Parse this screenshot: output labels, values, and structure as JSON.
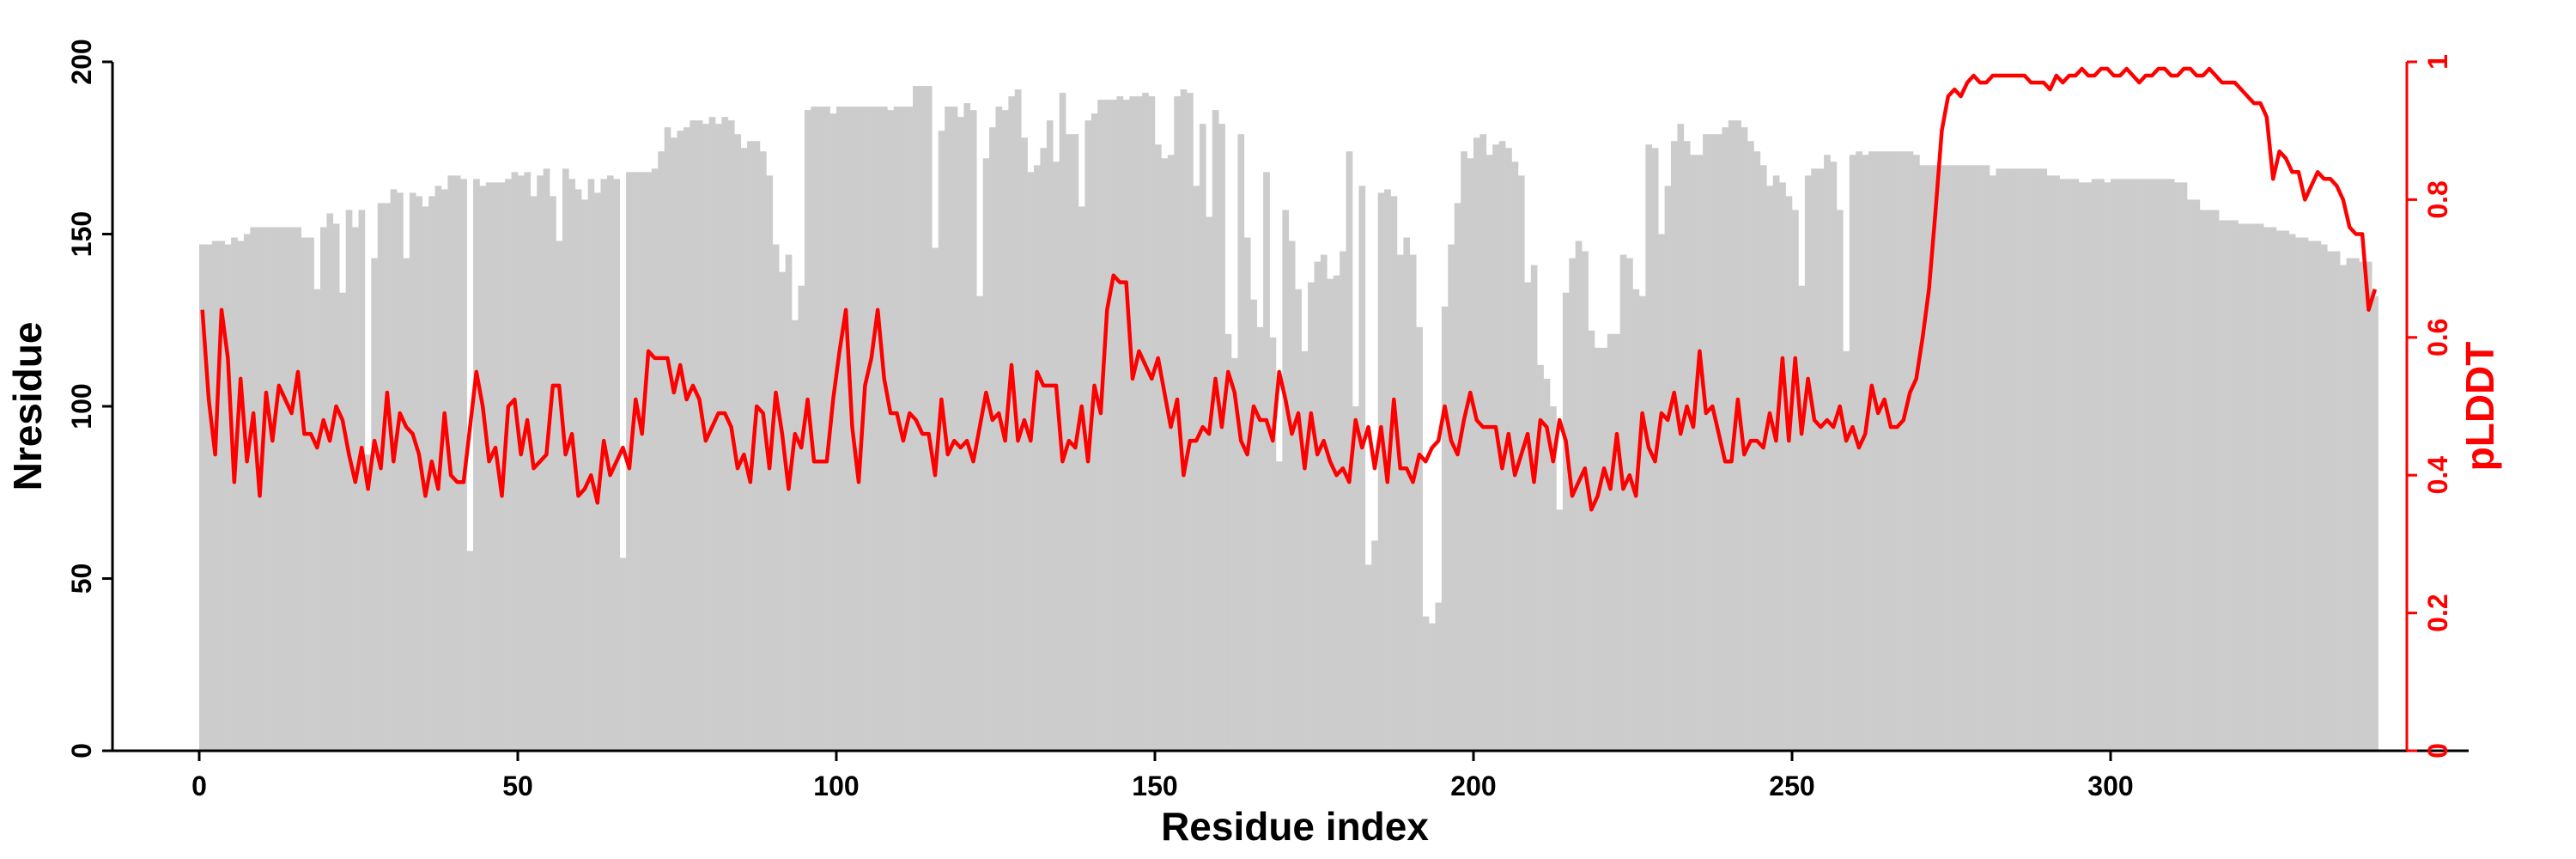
{
  "chart_data": {
    "type": "bar+line",
    "xlabel": "Residue index",
    "ylabel": "Nresidue",
    "y2label": "pLDDT",
    "xlim": [
      -13.6,
      356
    ],
    "ylim": [
      0,
      200
    ],
    "y2lim": [
      0,
      1
    ],
    "x_ticks": [
      "0",
      "50",
      "100",
      "150",
      "200",
      "250",
      "300"
    ],
    "x_tick_values": [
      0,
      50,
      100,
      150,
      200,
      250,
      300
    ],
    "y_ticks": [
      "0",
      "50",
      "100",
      "150",
      "200"
    ],
    "y_tick_values": [
      0,
      50,
      100,
      150,
      200
    ],
    "y2_ticks": [
      "0",
      "0.2",
      "0.4",
      "0.6",
      "0.8",
      "1"
    ],
    "y2_tick_values": [
      0,
      0.2,
      0.4,
      0.6,
      0.8,
      1
    ],
    "grid": false,
    "colors": {
      "bars": "#cccccc",
      "line": "#ff0000",
      "axis": "#000000",
      "axis2": "#ff0000"
    },
    "series": [
      {
        "name": "Nresidue",
        "type": "bar",
        "axis": "left",
        "values": [
          147,
          147,
          148,
          148,
          147,
          149,
          148,
          150,
          152,
          152,
          152,
          152,
          152,
          152,
          152,
          152,
          149,
          149,
          134,
          152,
          156,
          153,
          133,
          157,
          152,
          157,
          86,
          143,
          159,
          159,
          163,
          162,
          143,
          162,
          161,
          158,
          161,
          164,
          163,
          167,
          167,
          166,
          58,
          166,
          164,
          165,
          165,
          165,
          166,
          168,
          167,
          168,
          161,
          167,
          169,
          161,
          148,
          169,
          166,
          163,
          160,
          166,
          162,
          166,
          167,
          166,
          56,
          168,
          168,
          168,
          168,
          169,
          174,
          181,
          178,
          180,
          181,
          183,
          183,
          182,
          184,
          182,
          184,
          183,
          179,
          175,
          177,
          177,
          174,
          167,
          147,
          139,
          144,
          125,
          135,
          186,
          187,
          187,
          187,
          185,
          187,
          187,
          187,
          187,
          187,
          187,
          187,
          187,
          186,
          187,
          187,
          187,
          193,
          193,
          193,
          146,
          180,
          187,
          187,
          184,
          188,
          186,
          132,
          172,
          181,
          187,
          186,
          190,
          192,
          178,
          168,
          170,
          175,
          183,
          171,
          191,
          179,
          179,
          158,
          183,
          185,
          189,
          189,
          189,
          190,
          189,
          190,
          190,
          191,
          190,
          176,
          172,
          173,
          190,
          192,
          191,
          164,
          182,
          155,
          186,
          182,
          121,
          114,
          179,
          149,
          131,
          123,
          168,
          120,
          84,
          157,
          148,
          134,
          116,
          136,
          142,
          144,
          137,
          138,
          145,
          174,
          100,
          164,
          54,
          61,
          162,
          163,
          161,
          144,
          149,
          144,
          123,
          39,
          37,
          43,
          129,
          147,
          159,
          174,
          172,
          178,
          179,
          173,
          176,
          177,
          175,
          171,
          167,
          136,
          141,
          112,
          108,
          100,
          70,
          133,
          143,
          148,
          145,
          122,
          117,
          117,
          121,
          121,
          144,
          143,
          134,
          132,
          176,
          175,
          150,
          164,
          177,
          182,
          177,
          173,
          173,
          179,
          179,
          179,
          181,
          183,
          183,
          181,
          177,
          174,
          170,
          164,
          167,
          165,
          161,
          157,
          135,
          167,
          169,
          169,
          173,
          171,
          157,
          116,
          173,
          174,
          173,
          174,
          174,
          174,
          174,
          174,
          174,
          174,
          173,
          170,
          170,
          170,
          170,
          170,
          170,
          170,
          170,
          170,
          170,
          170,
          167,
          169,
          169,
          169,
          169,
          169,
          169,
          169,
          169,
          167,
          167,
          166,
          166,
          166,
          165,
          165,
          166,
          166,
          165,
          166,
          166,
          166,
          166,
          166,
          166,
          166,
          166,
          166,
          166,
          165,
          165,
          160,
          160,
          157,
          157,
          157,
          154,
          154,
          154,
          153,
          153,
          153,
          153,
          152,
          152,
          151,
          151,
          150,
          149,
          149,
          148,
          148,
          147,
          145,
          145,
          141,
          143,
          143,
          142,
          142,
          132
        ]
      },
      {
        "name": "pLDDT",
        "type": "line",
        "axis": "right",
        "values": [
          0.64,
          0.51,
          0.43,
          0.64,
          0.57,
          0.39,
          0.54,
          0.42,
          0.49,
          0.37,
          0.52,
          0.45,
          0.53,
          0.51,
          0.49,
          0.55,
          0.46,
          0.46,
          0.44,
          0.48,
          0.45,
          0.5,
          0.48,
          0.43,
          0.39,
          0.44,
          0.38,
          0.45,
          0.41,
          0.52,
          0.42,
          0.49,
          0.47,
          0.46,
          0.43,
          0.37,
          0.42,
          0.38,
          0.49,
          0.4,
          0.39,
          0.39,
          0.47,
          0.55,
          0.5,
          0.42,
          0.44,
          0.37,
          0.5,
          0.51,
          0.43,
          0.48,
          0.41,
          0.42,
          0.43,
          0.53,
          0.53,
          0.43,
          0.46,
          0.37,
          0.38,
          0.4,
          0.36,
          0.45,
          0.4,
          0.42,
          0.44,
          0.41,
          0.51,
          0.46,
          0.58,
          0.57,
          0.57,
          0.57,
          0.52,
          0.56,
          0.51,
          0.53,
          0.51,
          0.45,
          0.47,
          0.49,
          0.49,
          0.47,
          0.41,
          0.43,
          0.39,
          0.5,
          0.49,
          0.41,
          0.52,
          0.46,
          0.38,
          0.46,
          0.44,
          0.51,
          0.42,
          0.42,
          0.42,
          0.51,
          0.58,
          0.64,
          0.47,
          0.39,
          0.53,
          0.57,
          0.64,
          0.54,
          0.49,
          0.49,
          0.45,
          0.49,
          0.48,
          0.46,
          0.46,
          0.4,
          0.51,
          0.43,
          0.45,
          0.44,
          0.45,
          0.42,
          0.47,
          0.52,
          0.48,
          0.49,
          0.45,
          0.56,
          0.45,
          0.48,
          0.45,
          0.55,
          0.53,
          0.53,
          0.53,
          0.42,
          0.45,
          0.44,
          0.5,
          0.42,
          0.53,
          0.49,
          0.64,
          0.69,
          0.68,
          0.68,
          0.54,
          0.58,
          0.56,
          0.54,
          0.57,
          0.52,
          0.47,
          0.51,
          0.4,
          0.45,
          0.45,
          0.47,
          0.46,
          0.54,
          0.47,
          0.55,
          0.52,
          0.45,
          0.43,
          0.5,
          0.48,
          0.48,
          0.45,
          0.55,
          0.51,
          0.46,
          0.49,
          0.41,
          0.49,
          0.43,
          0.45,
          0.42,
          0.4,
          0.41,
          0.39,
          0.48,
          0.44,
          0.47,
          0.41,
          0.47,
          0.39,
          0.51,
          0.41,
          0.41,
          0.39,
          0.43,
          0.42,
          0.44,
          0.45,
          0.5,
          0.45,
          0.43,
          0.48,
          0.52,
          0.48,
          0.47,
          0.47,
          0.47,
          0.41,
          0.46,
          0.4,
          0.43,
          0.46,
          0.39,
          0.48,
          0.47,
          0.42,
          0.48,
          0.45,
          0.37,
          0.39,
          0.41,
          0.35,
          0.37,
          0.41,
          0.38,
          0.46,
          0.38,
          0.4,
          0.37,
          0.49,
          0.44,
          0.42,
          0.49,
          0.48,
          0.52,
          0.46,
          0.5,
          0.47,
          0.58,
          0.49,
          0.5,
          0.46,
          0.42,
          0.42,
          0.51,
          0.43,
          0.45,
          0.45,
          0.44,
          0.49,
          0.45,
          0.57,
          0.45,
          0.57,
          0.46,
          0.54,
          0.48,
          0.47,
          0.48,
          0.47,
          0.5,
          0.45,
          0.47,
          0.44,
          0.46,
          0.53,
          0.49,
          0.51,
          0.47,
          0.47,
          0.48,
          0.52,
          0.54,
          0.6,
          0.67,
          0.78,
          0.9,
          0.95,
          0.96,
          0.95,
          0.97,
          0.98,
          0.97,
          0.97,
          0.98,
          0.98,
          0.98,
          0.98,
          0.98,
          0.98,
          0.97,
          0.97,
          0.97,
          0.96,
          0.98,
          0.97,
          0.98,
          0.98,
          0.99,
          0.98,
          0.98,
          0.99,
          0.99,
          0.98,
          0.98,
          0.99,
          0.98,
          0.97,
          0.98,
          0.98,
          0.99,
          0.99,
          0.98,
          0.98,
          0.99,
          0.99,
          0.98,
          0.98,
          0.99,
          0.98,
          0.97,
          0.97,
          0.97,
          0.96,
          0.95,
          0.94,
          0.94,
          0.92,
          0.83,
          0.87,
          0.86,
          0.84,
          0.84,
          0.8,
          0.82,
          0.84,
          0.83,
          0.83,
          0.82,
          0.8,
          0.76,
          0.75,
          0.75,
          0.64,
          0.67
        ]
      }
    ]
  }
}
